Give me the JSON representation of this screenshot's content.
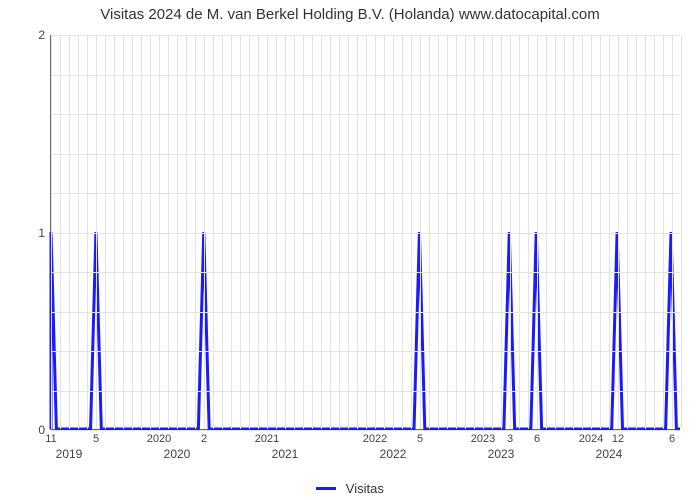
{
  "chart": {
    "type": "line",
    "title": "Visitas 2024 de M. van Berkel Holding B.V. (Holanda) www.datocapital.com",
    "title_fontsize": 15,
    "background_color": "#ffffff",
    "grid_color": "#e3e3e3",
    "axis_color": "#666666",
    "text_color": "#444444",
    "series_color": "#1a1aff",
    "series_line_width": 3,
    "ylim": [
      0,
      2
    ],
    "yticks": [
      0,
      1,
      2
    ],
    "y_minor_count": 4,
    "x_start_year": 2019,
    "x_end_year": 2024,
    "x_year_ticks": [
      2019,
      2020,
      2021,
      2022,
      2023,
      2024
    ],
    "top_labels": [
      {
        "month_index": 0,
        "text": "11"
      },
      {
        "month_index": 5,
        "text": "5"
      },
      {
        "month_index": 12,
        "text": "2020"
      },
      {
        "month_index": 17,
        "text": "2"
      },
      {
        "month_index": 24,
        "text": "2021"
      },
      {
        "month_index": 36,
        "text": "2022"
      },
      {
        "month_index": 41,
        "text": "5"
      },
      {
        "month_index": 48,
        "text": "2023"
      },
      {
        "month_index": 51,
        "text": "3"
      },
      {
        "month_index": 54,
        "text": "6"
      },
      {
        "month_index": 60,
        "text": "2024"
      },
      {
        "month_index": 63,
        "text": "12"
      },
      {
        "month_index": 69,
        "text": "6"
      }
    ],
    "legend": "Visitas",
    "legend_fontsize": 13,
    "total_months": 70,
    "spikes": [
      {
        "month_index": 0,
        "value": 1
      },
      {
        "month_index": 5,
        "value": 1
      },
      {
        "month_index": 17,
        "value": 1
      },
      {
        "month_index": 41,
        "value": 1
      },
      {
        "month_index": 51,
        "value": 1
      },
      {
        "month_index": 54,
        "value": 1
      },
      {
        "month_index": 63,
        "value": 1
      },
      {
        "month_index": 69,
        "value": 1
      }
    ],
    "spike_base_width_months": 1.2
  }
}
